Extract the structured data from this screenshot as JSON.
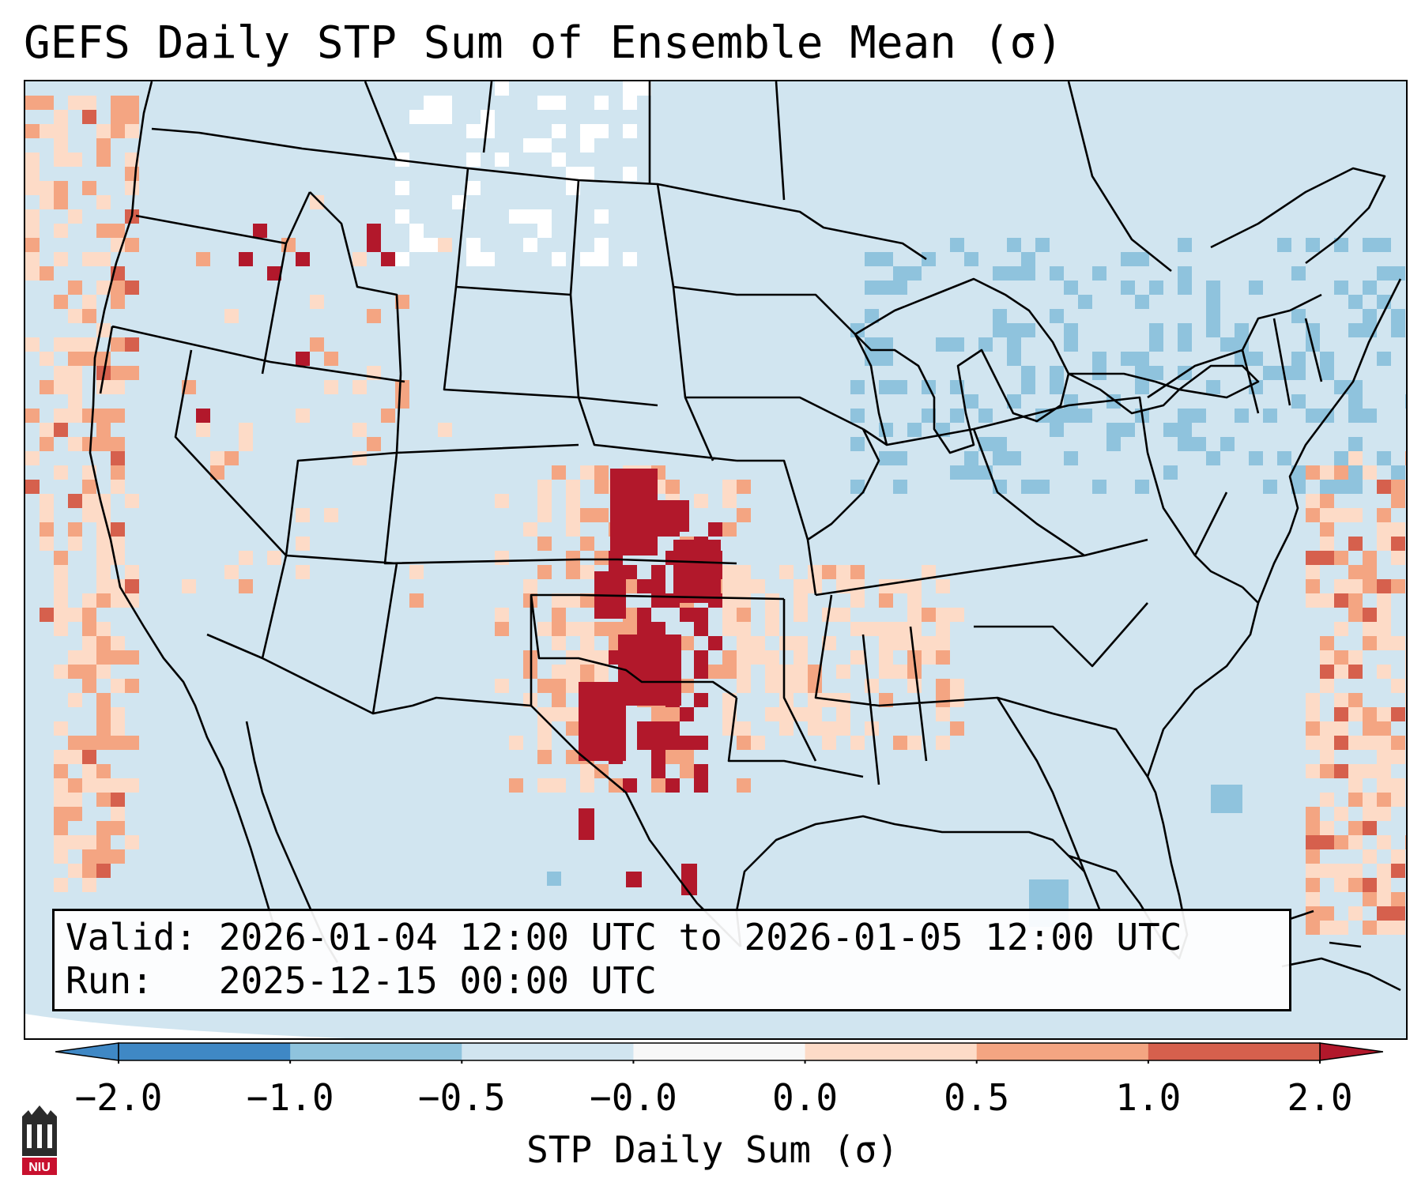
{
  "title": "GEFS Daily STP Sum of Ensemble Mean (σ)",
  "info": {
    "valid_label": "Valid:",
    "valid_text": "2026-01-04 12:00 UTC to 2026-01-05 12:00 UTC",
    "run_label": "Run:",
    "run_text": "2025-12-15 00:00 UTC"
  },
  "colorbar": {
    "label": "STP Daily Sum (σ)",
    "ticks": [
      "−2.0",
      "−1.0",
      "−0.5",
      "−0.0",
      "0.0",
      "0.5",
      "1.0",
      "2.0"
    ],
    "colors": [
      "#3f88c5",
      "#8fc3dd",
      "#d1e5f0",
      "#f7f7f7",
      "#fddbc7",
      "#f4a582",
      "#d6604d",
      "#b2182b"
    ],
    "extend": "both"
  },
  "map": {
    "projection": "Lambert Conformal, CONUS",
    "field": "STP daily sum anomaly",
    "background_color": "#d1e5f0",
    "highlight_region": "Southern Plains (Kansas, Oklahoma, Texas) maximum > 2.0 σ"
  },
  "logo": {
    "text": "NIU"
  }
}
